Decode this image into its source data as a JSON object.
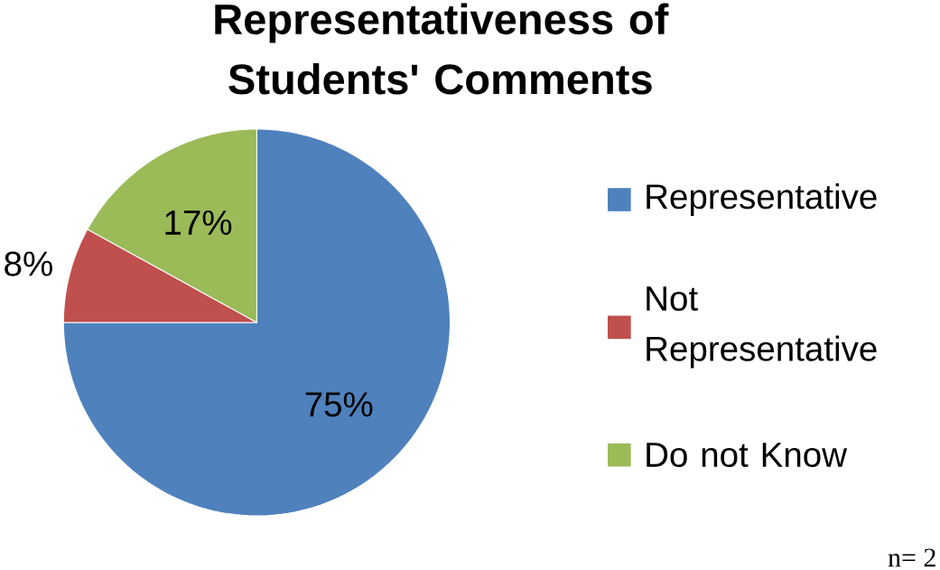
{
  "chart_data": {
    "type": "pie",
    "title": "Representativeness of Students' Comments",
    "categories": [
      "Representative",
      "Not Representative",
      "Do not Know"
    ],
    "values": [
      75,
      8,
      17
    ],
    "value_labels": [
      "75%",
      "8%",
      "17%"
    ],
    "colors": [
      "#4f81bd",
      "#c0504d",
      "#9bbb59"
    ],
    "legend": "right",
    "annotations": [
      "n= 2"
    ]
  }
}
